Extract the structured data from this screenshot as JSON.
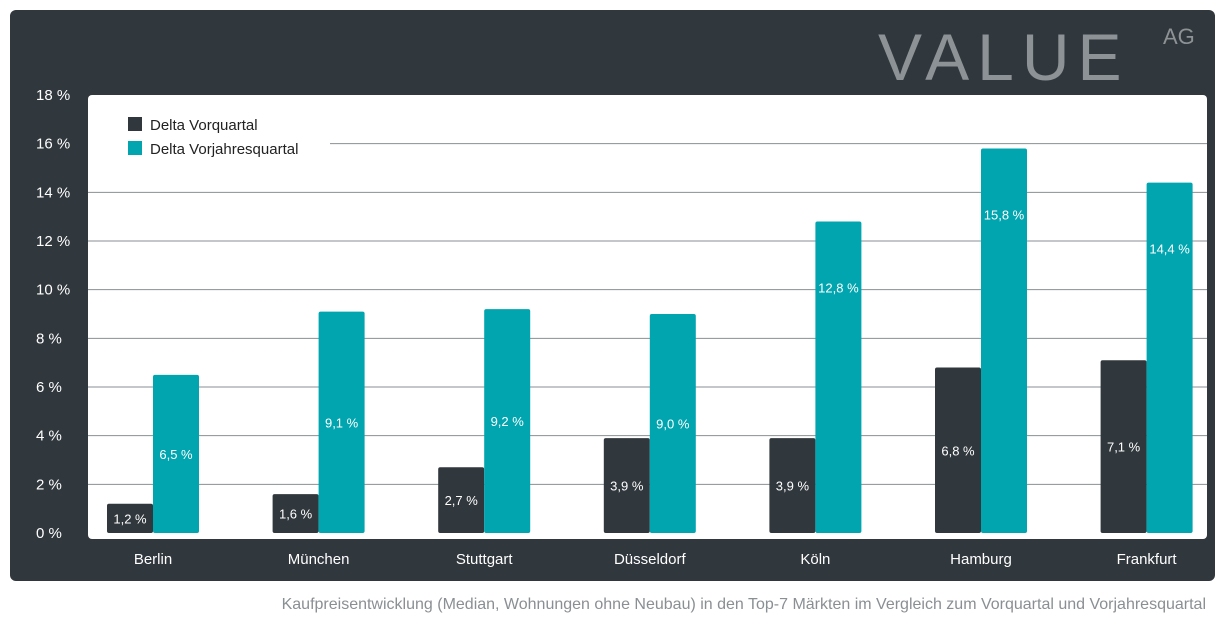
{
  "brand": {
    "logo_main": "VALUE",
    "logo_sub": "AG"
  },
  "caption": "Kaufpreisentwicklung (Median, Wohnungen ohne Neubau) in den Top-7 Märkten im Vergleich zum Vorquartal und Vorjahresquartal",
  "colors": {
    "panel": "#30373d",
    "series_dark": "#30373d",
    "series_teal": "#00a5af",
    "grid": "#8a8f93"
  },
  "chart_data": {
    "type": "bar",
    "categories": [
      "Berlin",
      "München",
      "Stuttgart",
      "Düsseldorf",
      "Köln",
      "Hamburg",
      "Frankfurt"
    ],
    "series": [
      {
        "name": "Delta Vorquartal",
        "color": "#30373d",
        "values": [
          1.2,
          1.6,
          2.7,
          3.9,
          3.9,
          6.8,
          7.1
        ],
        "labels": [
          "1,2 %",
          "1,6 %",
          "2,7 %",
          "3,9 %",
          "3,9 %",
          "6,8 %",
          "7,1 %"
        ]
      },
      {
        "name": "Delta Vorjahresquartal",
        "color": "#00a5af",
        "values": [
          6.5,
          9.1,
          9.2,
          9.0,
          12.8,
          15.8,
          14.4
        ],
        "labels": [
          "6,5 %",
          "9,1 %",
          "9,2 %",
          "9,0 %",
          "12,8 %",
          "15,8 %",
          "14,4 %"
        ]
      }
    ],
    "ylim": [
      0,
      18
    ],
    "yticks": [
      0,
      2,
      4,
      6,
      8,
      10,
      12,
      14,
      16,
      18
    ],
    "ytick_labels": [
      "0 %",
      "2 %",
      "4 %",
      "6 %",
      "8 %",
      "10 %",
      "12 %",
      "14 %",
      "16 %",
      "18 %"
    ],
    "legend_position": "top-left",
    "grid": true
  }
}
